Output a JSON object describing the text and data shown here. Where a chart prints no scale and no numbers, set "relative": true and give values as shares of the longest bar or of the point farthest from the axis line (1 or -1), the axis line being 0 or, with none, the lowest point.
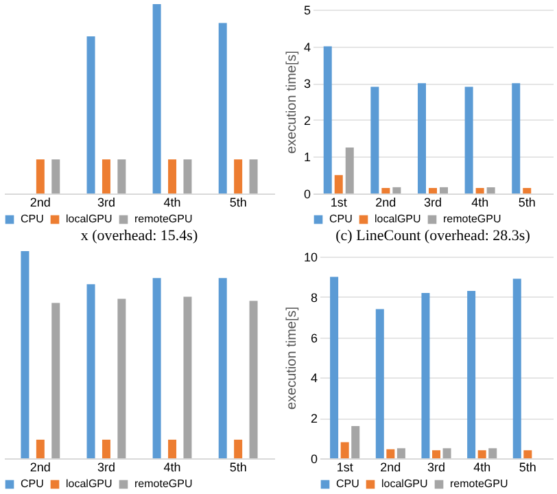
{
  "chart_data": [
    {
      "type": "bar",
      "title": "x (overhead: 15.4s)",
      "relative": true,
      "categories": [
        "2nd",
        "3rd",
        "4th",
        "5th"
      ],
      "legend": "bottom",
      "series": [
        {
          "name": "CPU",
          "color": "#5b9bd5",
          "values": [
            null,
            0.83,
            1,
            0.9
          ]
        },
        {
          "name": "localGPU",
          "color": "#ed7d31",
          "values": [
            0.18,
            0.18,
            0.18,
            0.18
          ]
        },
        {
          "name": "remoteGPU",
          "color": "#a5a5a5",
          "values": [
            0.18,
            0.18,
            0.18,
            0.18
          ]
        }
      ]
    },
    {
      "type": "bar",
      "title": "(c) LineCount (overhead: 28.3s)",
      "ylabel": "execution time[s]",
      "categories": [
        "1st",
        "2nd",
        "3rd",
        "4th",
        "5th"
      ],
      "ylim": [
        0,
        5
      ],
      "yticks": [
        0,
        1,
        2,
        3,
        4,
        5
      ],
      "grid": "y",
      "legend": "bottom",
      "series": [
        {
          "name": "CPU",
          "color": "#5b9bd5",
          "values": [
            4.0,
            2.9,
            3.0,
            2.9,
            3.0
          ]
        },
        {
          "name": "localGPU",
          "color": "#ed7d31",
          "values": [
            0.5,
            0.15,
            0.15,
            0.15,
            0.15
          ]
        },
        {
          "name": "remoteGPU",
          "color": "#a5a5a5",
          "values": [
            1.25,
            0.17,
            0.17,
            0.17,
            null
          ]
        }
      ]
    },
    {
      "type": "bar",
      "relative": true,
      "categories": [
        "2nd",
        "3rd",
        "4th",
        "5th"
      ],
      "legend": "bottom",
      "series": [
        {
          "name": "CPU",
          "color": "#5b9bd5",
          "values": [
            1,
            0.84,
            0.87,
            0.87
          ]
        },
        {
          "name": "localGPU",
          "color": "#ed7d31",
          "values": [
            0.09,
            0.09,
            0.09,
            0.09
          ]
        },
        {
          "name": "remoteGPU",
          "color": "#a5a5a5",
          "values": [
            0.75,
            0.77,
            0.78,
            0.76
          ]
        }
      ]
    },
    {
      "type": "bar",
      "ylabel": "execution time[s]",
      "categories": [
        "1st",
        "2nd",
        "3rd",
        "4th",
        "5th"
      ],
      "ylim": [
        0,
        10
      ],
      "yticks": [
        0,
        2,
        4,
        6,
        8,
        10
      ],
      "grid": "y",
      "legend": "bottom",
      "series": [
        {
          "name": "CPU",
          "color": "#5b9bd5",
          "values": [
            9.0,
            7.4,
            8.2,
            8.3,
            8.9
          ]
        },
        {
          "name": "localGPU",
          "color": "#ed7d31",
          "values": [
            0.8,
            0.45,
            0.4,
            0.4,
            0.4
          ]
        },
        {
          "name": "remoteGPU",
          "color": "#a5a5a5",
          "values": [
            1.6,
            0.5,
            0.5,
            0.5,
            null
          ]
        }
      ]
    }
  ]
}
